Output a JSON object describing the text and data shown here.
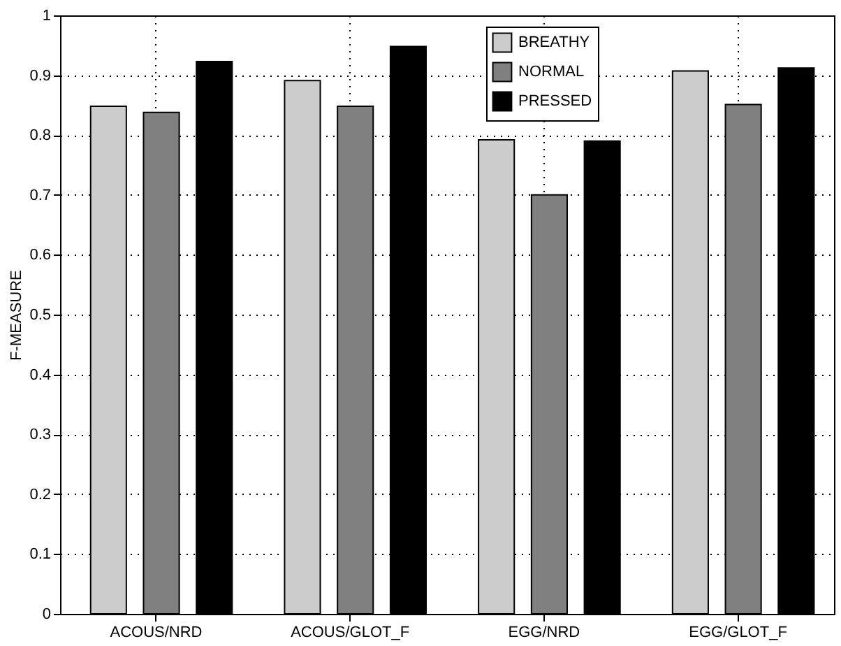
{
  "chart_data": {
    "type": "bar",
    "ylabel": "F-MEASURE",
    "categories": [
      "ACOUS/NRD",
      "ACOUS/GLOT_F",
      "EGG/NRD",
      "EGG/GLOT_F"
    ],
    "series": [
      {
        "name": "BREATHY",
        "color": "#cccccc",
        "values": [
          0.848,
          0.891,
          0.792,
          0.907
        ]
      },
      {
        "name": "NORMAL",
        "color": "#808080",
        "values": [
          0.838,
          0.848,
          0.7,
          0.851
        ]
      },
      {
        "name": "PRESSED",
        "color": "#000000",
        "values": [
          0.923,
          0.948,
          0.79,
          0.912
        ]
      }
    ],
    "ylim": [
      0,
      1
    ],
    "yticks": [
      0,
      0.1,
      0.2,
      0.3,
      0.4,
      0.5,
      0.6,
      0.7,
      0.8,
      0.9,
      1
    ],
    "grid": true,
    "legend": "top right"
  }
}
